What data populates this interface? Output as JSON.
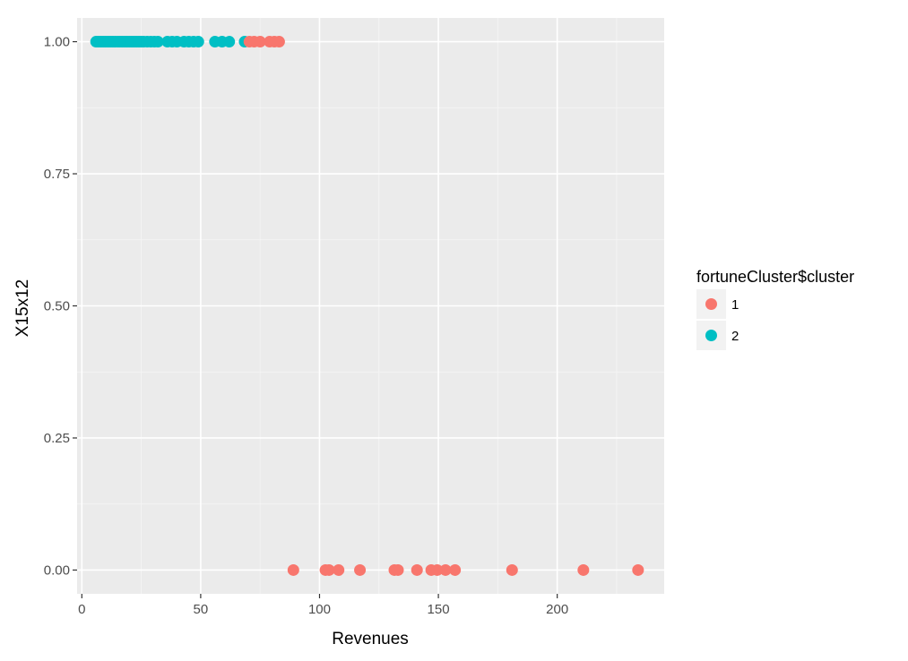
{
  "chart_data": {
    "type": "scatter",
    "title": "",
    "xlabel": "Revenues",
    "ylabel": "X15x12",
    "xlim": [
      -2,
      245
    ],
    "ylim": [
      -0.045,
      1.045
    ],
    "x_ticks": [
      0,
      50,
      100,
      150,
      200
    ],
    "x_tick_labels": [
      "0",
      "50",
      "100",
      "150",
      "200"
    ],
    "y_ticks": [
      0,
      0.25,
      0.5,
      0.75,
      1
    ],
    "y_tick_labels": [
      "0.00",
      "0.25",
      "0.50",
      "0.75",
      "1.00"
    ],
    "grid": true,
    "legend": {
      "title": "fortuneCluster$cluster",
      "position": "right"
    },
    "series": [
      {
        "name": "1",
        "color": "#F8766D",
        "points": [
          {
            "x": 70.5,
            "y": 1
          },
          {
            "x": 72.5,
            "y": 1
          },
          {
            "x": 75,
            "y": 1
          },
          {
            "x": 79,
            "y": 1
          },
          {
            "x": 81,
            "y": 1
          },
          {
            "x": 83,
            "y": 1
          },
          {
            "x": 89,
            "y": 0
          },
          {
            "x": 102.5,
            "y": 0
          },
          {
            "x": 104,
            "y": 0
          },
          {
            "x": 108,
            "y": 0
          },
          {
            "x": 117,
            "y": 0
          },
          {
            "x": 131.5,
            "y": 0
          },
          {
            "x": 133,
            "y": 0
          },
          {
            "x": 141,
            "y": 0
          },
          {
            "x": 147,
            "y": 0
          },
          {
            "x": 149.5,
            "y": 0
          },
          {
            "x": 153,
            "y": 0
          },
          {
            "x": 157,
            "y": 0
          },
          {
            "x": 181,
            "y": 0
          },
          {
            "x": 211,
            "y": 0
          },
          {
            "x": 234,
            "y": 0
          }
        ]
      },
      {
        "name": "2",
        "color": "#00BFC4",
        "points": [
          {
            "x": 6,
            "y": 1
          },
          {
            "x": 7,
            "y": 1
          },
          {
            "x": 8,
            "y": 1
          },
          {
            "x": 9,
            "y": 1
          },
          {
            "x": 10,
            "y": 1
          },
          {
            "x": 11,
            "y": 1
          },
          {
            "x": 12,
            "y": 1
          },
          {
            "x": 13,
            "y": 1
          },
          {
            "x": 14,
            "y": 1
          },
          {
            "x": 15,
            "y": 1
          },
          {
            "x": 16,
            "y": 1
          },
          {
            "x": 17,
            "y": 1
          },
          {
            "x": 18,
            "y": 1
          },
          {
            "x": 19,
            "y": 1
          },
          {
            "x": 20,
            "y": 1
          },
          {
            "x": 21,
            "y": 1
          },
          {
            "x": 22,
            "y": 1
          },
          {
            "x": 23,
            "y": 1
          },
          {
            "x": 24,
            "y": 1
          },
          {
            "x": 25,
            "y": 1
          },
          {
            "x": 26,
            "y": 1
          },
          {
            "x": 27.5,
            "y": 1
          },
          {
            "x": 29,
            "y": 1
          },
          {
            "x": 30.5,
            "y": 1
          },
          {
            "x": 32,
            "y": 1
          },
          {
            "x": 36,
            "y": 1
          },
          {
            "x": 38,
            "y": 1
          },
          {
            "x": 40,
            "y": 1
          },
          {
            "x": 43,
            "y": 1
          },
          {
            "x": 45,
            "y": 1
          },
          {
            "x": 47,
            "y": 1
          },
          {
            "x": 49,
            "y": 1
          },
          {
            "x": 56,
            "y": 1
          },
          {
            "x": 59,
            "y": 1
          },
          {
            "x": 62,
            "y": 1
          },
          {
            "x": 68.5,
            "y": 1
          }
        ]
      }
    ]
  }
}
